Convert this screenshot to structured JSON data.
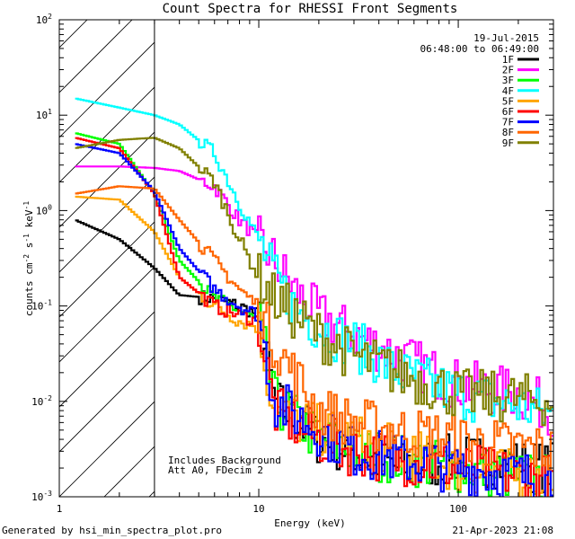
{
  "chart_data": {
    "type": "line",
    "title": "Count Spectra for RHESSI Front Segments",
    "xlabel": "Energy (keV)",
    "ylabel_parts": {
      "a": "counts cm",
      "a_sup": "-2",
      "b": " s",
      "b_sup": "-1",
      "c": " keV",
      "c_sup": "-1"
    },
    "xscale": "log",
    "yscale": "log",
    "xlim": [
      1,
      300
    ],
    "ylim": [
      0.001,
      100
    ],
    "x_ticks": [
      {
        "value": 1,
        "label": "1"
      },
      {
        "value": 10,
        "label": "10"
      },
      {
        "value": 100,
        "label": "100"
      }
    ],
    "y_ticks": [
      {
        "value": 0.001,
        "base": "10",
        "exp": "-3"
      },
      {
        "value": 0.01,
        "base": "10",
        "exp": "-2"
      },
      {
        "value": 0.1,
        "base": "10",
        "exp": "-1"
      },
      {
        "value": 1,
        "base": "10",
        "exp": "0"
      },
      {
        "value": 10,
        "base": "10",
        "exp": "1"
      },
      {
        "value": 100,
        "base": "10",
        "exp": "2"
      }
    ],
    "hatched_region_kev": [
      1,
      3
    ],
    "date": "19-Jul-2015",
    "time_range": "06:48:00 to 06:49:00",
    "annotations": [
      "Includes Background",
      "Att A0, FDecim 2"
    ],
    "legend_position": "top-right",
    "series": [
      {
        "name": "1F",
        "color": "#000000",
        "kev": [
          1.2,
          2,
          3,
          4,
          6,
          8,
          10,
          12,
          20,
          30,
          50,
          100,
          300
        ],
        "values": [
          0.8,
          0.5,
          0.25,
          0.13,
          0.12,
          0.1,
          0.08,
          0.01,
          0.004,
          0.003,
          0.002,
          0.0025,
          0.002
        ]
      },
      {
        "name": "2F",
        "color": "#ff00ff",
        "kev": [
          1.2,
          2,
          3,
          4,
          6,
          8,
          10,
          12,
          15,
          20,
          30,
          50,
          100,
          200,
          300
        ],
        "values": [
          2.9,
          2.9,
          2.8,
          2.6,
          1.8,
          0.8,
          0.5,
          0.3,
          0.15,
          0.08,
          0.05,
          0.03,
          0.015,
          0.012,
          0.008
        ]
      },
      {
        "name": "3F",
        "color": "#00ff00",
        "kev": [
          1.2,
          2,
          3,
          4,
          6,
          8,
          10,
          12,
          20,
          30,
          50,
          100,
          300
        ],
        "values": [
          6.5,
          5,
          1.5,
          0.3,
          0.12,
          0.09,
          0.07,
          0.01,
          0.004,
          0.003,
          0.0025,
          0.002,
          0.0015
        ]
      },
      {
        "name": "4F",
        "color": "#00ffff",
        "kev": [
          1.2,
          2,
          3,
          4,
          6,
          8,
          10,
          12,
          15,
          20,
          30,
          50,
          100,
          200,
          300
        ],
        "values": [
          15,
          12,
          10,
          8,
          4,
          1.2,
          0.5,
          0.2,
          0.1,
          0.06,
          0.04,
          0.02,
          0.012,
          0.009,
          0.007
        ]
      },
      {
        "name": "5F",
        "color": "#ffa500",
        "kev": [
          1.2,
          2,
          3,
          4,
          6,
          8,
          10,
          12,
          20,
          30,
          50,
          100,
          300
        ],
        "values": [
          1.4,
          1.3,
          0.6,
          0.2,
          0.1,
          0.07,
          0.06,
          0.008,
          0.005,
          0.004,
          0.003,
          0.002,
          0.0015
        ]
      },
      {
        "name": "6F",
        "color": "#ff0000",
        "kev": [
          1.2,
          2,
          3,
          4,
          6,
          8,
          10,
          12,
          20,
          30,
          50,
          100,
          300
        ],
        "values": [
          5.8,
          4.5,
          1.5,
          0.2,
          0.1,
          0.08,
          0.07,
          0.008,
          0.004,
          0.003,
          0.0025,
          0.002,
          0.0015
        ]
      },
      {
        "name": "7F",
        "color": "#0000ff",
        "kev": [
          1.2,
          2,
          3,
          4,
          6,
          8,
          10,
          12,
          20,
          30,
          50,
          100,
          300
        ],
        "values": [
          5,
          4,
          1.6,
          0.4,
          0.15,
          0.1,
          0.08,
          0.01,
          0.005,
          0.003,
          0.0025,
          0.002,
          0.0015
        ]
      },
      {
        "name": "8F",
        "color": "#ff6600",
        "kev": [
          1.2,
          2,
          3,
          4,
          6,
          8,
          10,
          12,
          20,
          30,
          50,
          100,
          300
        ],
        "values": [
          1.5,
          1.8,
          1.7,
          0.8,
          0.3,
          0.15,
          0.1,
          0.04,
          0.008,
          0.006,
          0.005,
          0.004,
          0.003
        ]
      },
      {
        "name": "9F",
        "color": "#808000",
        "kev": [
          1.2,
          2,
          3,
          4,
          6,
          8,
          10,
          12,
          20,
          30,
          50,
          100,
          300
        ],
        "values": [
          4.5,
          5.5,
          5.8,
          4.5,
          2,
          0.5,
          0.2,
          0.12,
          0.05,
          0.03,
          0.02,
          0.012,
          0.01
        ]
      }
    ]
  },
  "footer": {
    "left": "Generated by hsi_min_spectra_plot.pro",
    "right": "21-Apr-2023 21:08"
  }
}
